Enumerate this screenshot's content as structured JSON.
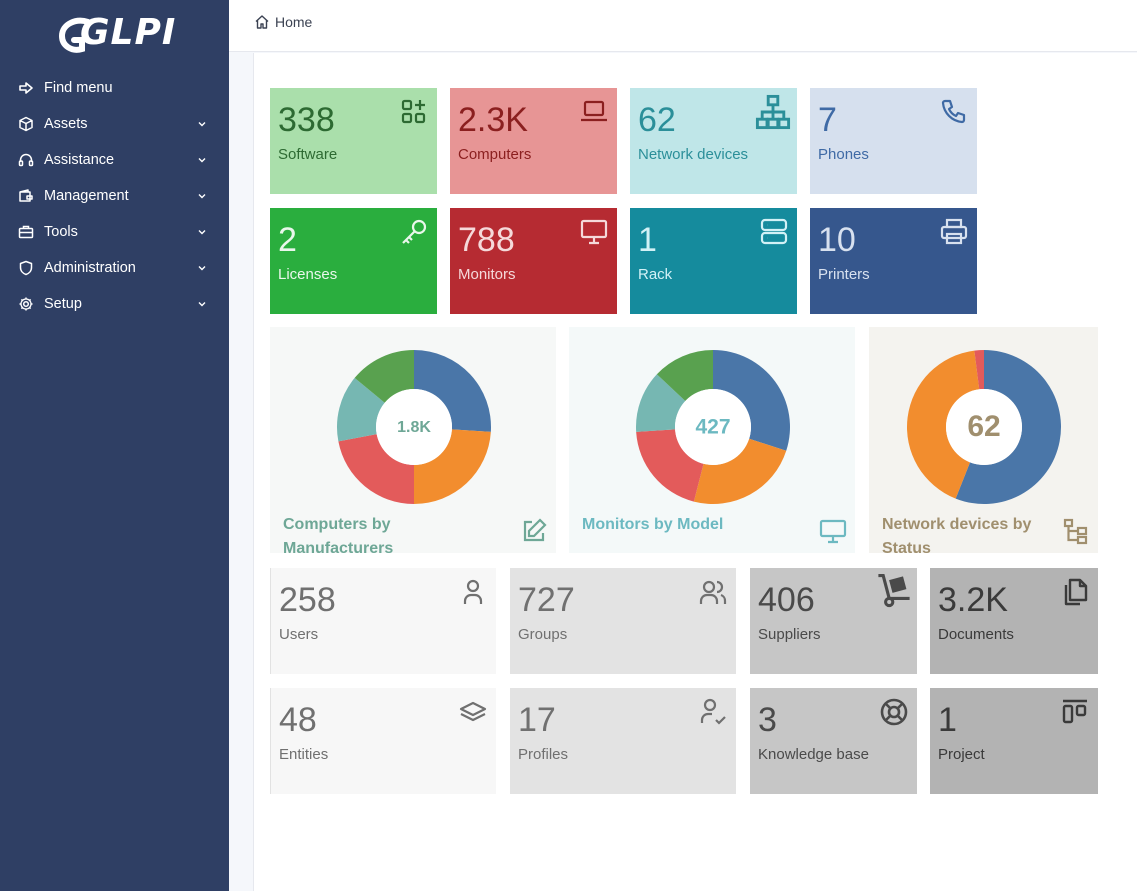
{
  "app": {
    "name": "GLPI"
  },
  "sidebar": {
    "items": [
      {
        "label": "Find menu",
        "icon": "arrow-right-icon",
        "chevron": false
      },
      {
        "label": "Assets",
        "icon": "cube-icon",
        "chevron": true
      },
      {
        "label": "Assistance",
        "icon": "headset-icon",
        "chevron": true
      },
      {
        "label": "Management",
        "icon": "wallet-icon",
        "chevron": true
      },
      {
        "label": "Tools",
        "icon": "briefcase-icon",
        "chevron": true
      },
      {
        "label": "Administration",
        "icon": "shield-icon",
        "chevron": true
      },
      {
        "label": "Setup",
        "icon": "gear-icon",
        "chevron": true
      }
    ]
  },
  "breadcrumb": {
    "home": "Home"
  },
  "cards_row1": [
    {
      "value": "338",
      "label": "Software",
      "icon": "apps-icon",
      "bg": "#aadfab",
      "fg": "#2d6a32"
    },
    {
      "value": "2.3K",
      "label": "Computers",
      "icon": "laptop-icon",
      "bg": "#e79595",
      "fg": "#8b1f1f"
    },
    {
      "value": "62",
      "label": "Network devices",
      "icon": "network-icon",
      "bg": "#bfe6e8",
      "fg": "#2b8f99"
    },
    {
      "value": "7",
      "label": "Phones",
      "icon": "phone-icon",
      "bg": "#d6e0ee",
      "fg": "#3f6aa5"
    }
  ],
  "cards_row2": [
    {
      "value": "2",
      "label": "Licenses",
      "icon": "key-icon",
      "bg": "#2aae3e",
      "fg": "#e9f7eb"
    },
    {
      "value": "788",
      "label": "Monitors",
      "icon": "monitor-icon",
      "bg": "#b62b32",
      "fg": "#f5d9da"
    },
    {
      "value": "1",
      "label": "Rack",
      "icon": "server-icon",
      "bg": "#158b9d",
      "fg": "#d2f1f6"
    },
    {
      "value": "10",
      "label": "Printers",
      "icon": "printer-icon",
      "bg": "#36578d",
      "fg": "#d8e1ef"
    }
  ],
  "donuts": [
    {
      "title": "Computers by Manufacturers",
      "center": "1.8K",
      "icon": "edit-icon",
      "bg": "#f6f8f7",
      "fg": "#6ea796",
      "slices": [
        {
          "value": 26,
          "color": "#4a76a8"
        },
        {
          "value": 24,
          "color": "#f28d2e"
        },
        {
          "value": 22,
          "color": "#e35b5b"
        },
        {
          "value": 14,
          "color": "#76b7b2"
        },
        {
          "value": 14,
          "color": "#59a14f"
        }
      ]
    },
    {
      "title": "Monitors by Model",
      "center": "427",
      "icon": "monitor-icon",
      "bg": "#f4f9f9",
      "fg": "#6cb9c1",
      "slices": [
        {
          "value": 30,
          "color": "#4a76a8"
        },
        {
          "value": 24,
          "color": "#f28d2e"
        },
        {
          "value": 20,
          "color": "#e35b5b"
        },
        {
          "value": 13,
          "color": "#76b7b2"
        },
        {
          "value": 13,
          "color": "#59a14f"
        }
      ]
    },
    {
      "title": "Network devices by Status",
      "center": "62",
      "icon": "sitemap-icon",
      "bg": "#f4f3ef",
      "fg": "#a08f6e",
      "slices": [
        {
          "value": 56,
          "color": "#4a76a8"
        },
        {
          "value": 42,
          "color": "#f28d2e"
        },
        {
          "value": 2,
          "color": "#e35b5b"
        }
      ]
    }
  ],
  "cards_row3": [
    {
      "value": "258",
      "label": "Users",
      "icon": "user-icon",
      "bg": "#f7f7f7",
      "fg": "#707070"
    },
    {
      "value": "727",
      "label": "Groups",
      "icon": "users-icon",
      "bg": "#e3e3e3",
      "fg": "#707070"
    },
    {
      "value": "406",
      "label": "Suppliers",
      "icon": "dolly-icon",
      "bg": "#c6c6c6",
      "fg": "#4a4a4a"
    },
    {
      "value": "3.2K",
      "label": "Documents",
      "icon": "files-icon",
      "bg": "#b3b3b3",
      "fg": "#3a3a3a"
    }
  ],
  "cards_row4": [
    {
      "value": "48",
      "label": "Entities",
      "icon": "stack-icon",
      "bg": "#f7f7f7",
      "fg": "#707070"
    },
    {
      "value": "17",
      "label": "Profiles",
      "icon": "user-check-icon",
      "bg": "#e3e3e3",
      "fg": "#707070"
    },
    {
      "value": "3",
      "label": "Knowledge base",
      "icon": "lifebuoy-icon",
      "bg": "#c6c6c6",
      "fg": "#4a4a4a"
    },
    {
      "value": "1",
      "label": "Project",
      "icon": "layout-icon",
      "bg": "#b3b3b3",
      "fg": "#3a3a3a"
    }
  ]
}
